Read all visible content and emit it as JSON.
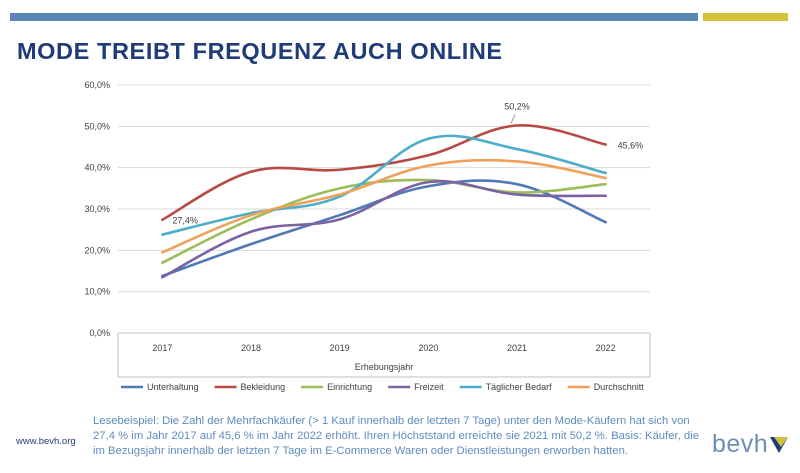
{
  "header": {
    "title": "MODE TREIBT FREQUENZ AUCH ONLINE",
    "bar_colors": [
      "#5b87b5",
      "#d2c33a"
    ]
  },
  "chart_data": {
    "type": "line",
    "categories": [
      "2017",
      "2018",
      "2019",
      "2020",
      "2021",
      "2022"
    ],
    "xlabel": "Erhebungsjahr",
    "ylabel": "",
    "ylim": [
      0,
      60
    ],
    "y_ticks": [
      "0,0%",
      "10,0%",
      "20,0%",
      "30,0%",
      "40,0%",
      "50,0%",
      "60,0%"
    ],
    "grid": true,
    "smooth": true,
    "legend_position": "bottom",
    "series": [
      {
        "name": "Unterhaltung",
        "color": "#4f7ab5",
        "values": [
          13.8,
          21.5,
          28.5,
          35.5,
          36.0,
          26.8
        ]
      },
      {
        "name": "Bekleidung",
        "color": "#b84a45",
        "values": [
          27.4,
          39.0,
          39.5,
          43.0,
          50.2,
          45.6
        ]
      },
      {
        "name": "Einrichtung",
        "color": "#9cbd5a",
        "values": [
          17.0,
          27.5,
          35.0,
          37.0,
          34.0,
          36.0
        ]
      },
      {
        "name": "Freizeit",
        "color": "#7a62a3",
        "values": [
          13.5,
          24.5,
          27.5,
          36.5,
          33.5,
          33.2
        ]
      },
      {
        "name": "Täglicher Bedarf",
        "color": "#4caec8",
        "values": [
          23.8,
          29.0,
          33.0,
          47.0,
          44.5,
          38.7
        ]
      },
      {
        "name": "Durchschnitt",
        "color": "#f0a05a",
        "values": [
          19.5,
          28.5,
          33.5,
          40.5,
          41.5,
          37.5
        ]
      }
    ],
    "data_labels": [
      {
        "series": "Bekleidung",
        "category": "2017",
        "text": "27,4%"
      },
      {
        "series": "Bekleidung",
        "category": "2021",
        "text": "50,2%"
      },
      {
        "series": "Bekleidung",
        "category": "2022",
        "text": "45,6%"
      }
    ]
  },
  "caption": "Lesebeispiel: Die Zahl der Mehrfachkäufer (> 1 Kauf innerhalb der letzten 7 Tage) unter den Mode-Käufern hat sich von 27,4 % im Jahr 2017 auf 45,6 % im Jahr 2022 erhöht. Ihren Höchststand erreichte sie 2021 mit 50,2 %. Basis: Käufer, die im Bezugsjahr innerhalb der letzten 7 Tage im E-Commerce Waren oder Dienstleistungen erworben hatten.",
  "footer": {
    "url": "www.bevh.org",
    "logo_text": "bevh",
    "logo_colors": [
      "#6c8fb8",
      "#1f3c78",
      "#d2c33a"
    ]
  }
}
